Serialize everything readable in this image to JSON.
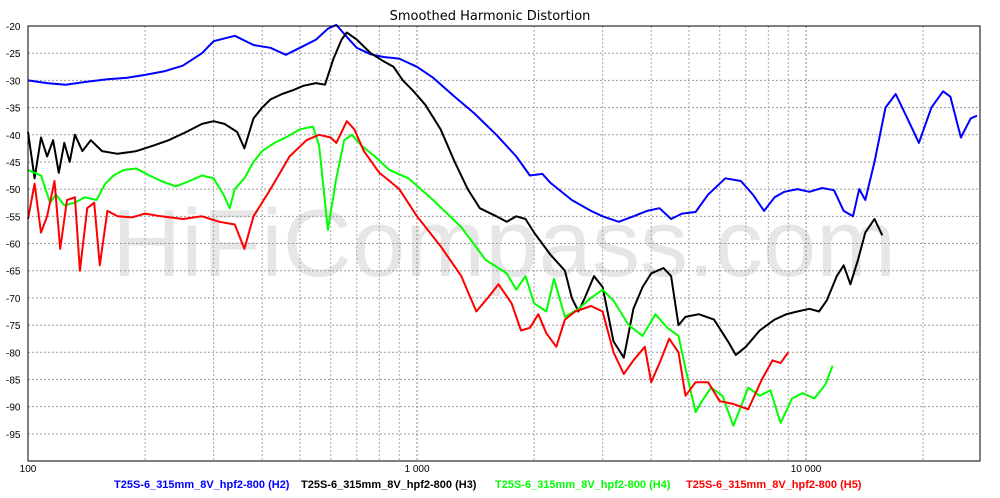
{
  "chart_data": {
    "type": "line",
    "title": "Smoothed Harmonic Distortion",
    "watermark": "HiFiCompass.com",
    "x_scale": "log",
    "xlim": [
      100,
      28000
    ],
    "ylim": [
      -100,
      -20
    ],
    "x_tick_labels": [
      {
        "value": 100,
        "label": "100"
      },
      {
        "value": 1000,
        "label": "1 000"
      },
      {
        "value": 10000,
        "label": "10 000"
      }
    ],
    "y_ticks": [
      -20,
      -25,
      -30,
      -35,
      -40,
      -45,
      -50,
      -55,
      -60,
      -65,
      -70,
      -75,
      -80,
      -85,
      -90,
      -95
    ],
    "y_tick_labels": [
      "-20",
      "-25",
      "-30",
      "-35",
      "-40",
      "-45",
      "-50",
      "-55",
      "-60",
      "-65",
      "-70",
      "-75",
      "-80",
      "-85",
      "-90",
      "-95"
    ],
    "grid": true,
    "legend_position": "bottom",
    "series": [
      {
        "name": "T25S-6_315mm_8V_hpf2-800 (H2)",
        "color": "#0000ff",
        "points": [
          [
            100,
            -30
          ],
          [
            112,
            -30.5
          ],
          [
            125,
            -30.8
          ],
          [
            140,
            -30.3
          ],
          [
            160,
            -29.8
          ],
          [
            180,
            -29.5
          ],
          [
            200,
            -29
          ],
          [
            225,
            -28.3
          ],
          [
            250,
            -27.3
          ],
          [
            280,
            -25
          ],
          [
            300,
            -22.8
          ],
          [
            340,
            -21.8
          ],
          [
            380,
            -23.5
          ],
          [
            420,
            -24
          ],
          [
            460,
            -25.3
          ],
          [
            500,
            -24
          ],
          [
            550,
            -22.5
          ],
          [
            590,
            -20.5
          ],
          [
            620,
            -19.8
          ],
          [
            660,
            -22
          ],
          [
            700,
            -24
          ],
          [
            760,
            -25.2
          ],
          [
            820,
            -25.7
          ],
          [
            900,
            -26
          ],
          [
            1000,
            -27.5
          ],
          [
            1100,
            -29.5
          ],
          [
            1250,
            -33
          ],
          [
            1400,
            -36
          ],
          [
            1600,
            -40
          ],
          [
            1800,
            -44
          ],
          [
            1950,
            -47.5
          ],
          [
            2100,
            -47.2
          ],
          [
            2200,
            -48.8
          ],
          [
            2500,
            -52
          ],
          [
            2800,
            -54
          ],
          [
            3000,
            -55
          ],
          [
            3300,
            -56
          ],
          [
            3600,
            -55
          ],
          [
            3900,
            -54
          ],
          [
            4200,
            -53.5
          ],
          [
            4500,
            -55.5
          ],
          [
            4800,
            -54.5
          ],
          [
            5200,
            -54.2
          ],
          [
            5600,
            -51
          ],
          [
            6200,
            -48
          ],
          [
            6800,
            -48.5
          ],
          [
            7300,
            -51
          ],
          [
            7800,
            -54
          ],
          [
            8300,
            -51.5
          ],
          [
            8800,
            -50.5
          ],
          [
            9500,
            -50
          ],
          [
            10200,
            -50.5
          ],
          [
            11000,
            -49.8
          ],
          [
            11800,
            -50.2
          ],
          [
            12500,
            -54
          ],
          [
            13200,
            -55
          ],
          [
            13700,
            -50
          ],
          [
            14200,
            -52
          ],
          [
            15000,
            -45
          ],
          [
            16000,
            -35
          ],
          [
            17000,
            -32.5
          ],
          [
            18500,
            -38
          ],
          [
            19500,
            -41.5
          ],
          [
            21000,
            -35
          ],
          [
            22500,
            -32
          ],
          [
            23500,
            -33
          ],
          [
            25000,
            -40.5
          ],
          [
            26500,
            -37
          ],
          [
            27500,
            -36.5
          ]
        ]
      },
      {
        "name": "T25S-6_315mm_8V_hpf2-800 (H3)",
        "color": "#000000",
        "points": [
          [
            100,
            -39.5
          ],
          [
            104,
            -48
          ],
          [
            108,
            -40.5
          ],
          [
            112,
            -44
          ],
          [
            116,
            -41
          ],
          [
            120,
            -47
          ],
          [
            124,
            -41.5
          ],
          [
            128,
            -45
          ],
          [
            132,
            -40
          ],
          [
            138,
            -43
          ],
          [
            145,
            -41
          ],
          [
            155,
            -43
          ],
          [
            170,
            -43.5
          ],
          [
            190,
            -43
          ],
          [
            210,
            -42
          ],
          [
            230,
            -41
          ],
          [
            255,
            -39.5
          ],
          [
            280,
            -38
          ],
          [
            300,
            -37.5
          ],
          [
            320,
            -38
          ],
          [
            345,
            -39.5
          ],
          [
            360,
            -42.5
          ],
          [
            380,
            -37
          ],
          [
            400,
            -35
          ],
          [
            420,
            -33.5
          ],
          [
            450,
            -32.5
          ],
          [
            480,
            -31.8
          ],
          [
            510,
            -31
          ],
          [
            550,
            -30.5
          ],
          [
            580,
            -30.8
          ],
          [
            610,
            -26
          ],
          [
            640,
            -22.5
          ],
          [
            660,
            -21.2
          ],
          [
            700,
            -22.5
          ],
          [
            760,
            -25
          ],
          [
            820,
            -26.5
          ],
          [
            870,
            -27.5
          ],
          [
            920,
            -30
          ],
          [
            980,
            -32
          ],
          [
            1050,
            -34.5
          ],
          [
            1150,
            -39
          ],
          [
            1250,
            -45
          ],
          [
            1350,
            -50
          ],
          [
            1450,
            -53.5
          ],
          [
            1600,
            -55
          ],
          [
            1700,
            -56
          ],
          [
            1800,
            -55
          ],
          [
            1900,
            -55.5
          ],
          [
            2000,
            -58
          ],
          [
            2200,
            -62
          ],
          [
            2400,
            -65
          ],
          [
            2500,
            -70
          ],
          [
            2600,
            -72.5
          ],
          [
            2700,
            -70
          ],
          [
            2850,
            -66
          ],
          [
            3000,
            -68
          ],
          [
            3200,
            -78
          ],
          [
            3400,
            -81
          ],
          [
            3600,
            -72
          ],
          [
            3800,
            -68
          ],
          [
            4000,
            -65.5
          ],
          [
            4300,
            -64.5
          ],
          [
            4500,
            -66
          ],
          [
            4700,
            -75
          ],
          [
            4900,
            -73.5
          ],
          [
            5300,
            -73
          ],
          [
            5800,
            -74
          ],
          [
            6300,
            -78
          ],
          [
            6600,
            -80.5
          ],
          [
            7000,
            -79
          ],
          [
            7600,
            -76
          ],
          [
            8300,
            -74
          ],
          [
            8900,
            -73
          ],
          [
            9500,
            -72.5
          ],
          [
            10200,
            -72
          ],
          [
            10800,
            -72.5
          ],
          [
            11300,
            -70.5
          ],
          [
            12000,
            -66
          ],
          [
            12500,
            -64
          ],
          [
            13000,
            -67.5
          ],
          [
            13600,
            -63
          ],
          [
            14200,
            -58
          ],
          [
            15000,
            -55.5
          ],
          [
            15700,
            -58.5
          ]
        ]
      },
      {
        "name": "T25S-6_315mm_8V_hpf2-800 (H4)",
        "color": "#00ff00",
        "points": [
          [
            100,
            -46.5
          ],
          [
            108,
            -47.5
          ],
          [
            114,
            -52.5
          ],
          [
            118,
            -51
          ],
          [
            124,
            -53
          ],
          [
            132,
            -52.5
          ],
          [
            140,
            -51.5
          ],
          [
            150,
            -52
          ],
          [
            158,
            -49
          ],
          [
            166,
            -47.5
          ],
          [
            176,
            -46.5
          ],
          [
            190,
            -46.2
          ],
          [
            205,
            -47.5
          ],
          [
            220,
            -48.5
          ],
          [
            240,
            -49.5
          ],
          [
            260,
            -48.5
          ],
          [
            280,
            -47.5
          ],
          [
            300,
            -48
          ],
          [
            318,
            -51
          ],
          [
            330,
            -53.5
          ],
          [
            340,
            -50
          ],
          [
            360,
            -48
          ],
          [
            380,
            -45
          ],
          [
            400,
            -43
          ],
          [
            430,
            -41.5
          ],
          [
            460,
            -40.5
          ],
          [
            500,
            -39
          ],
          [
            540,
            -38.5
          ],
          [
            560,
            -42
          ],
          [
            590,
            -57.5
          ],
          [
            620,
            -48
          ],
          [
            650,
            -41
          ],
          [
            680,
            -40
          ],
          [
            720,
            -42
          ],
          [
            780,
            -44
          ],
          [
            850,
            -46.5
          ],
          [
            950,
            -48
          ],
          [
            1100,
            -52
          ],
          [
            1300,
            -57
          ],
          [
            1500,
            -63
          ],
          [
            1700,
            -65.5
          ],
          [
            1800,
            -68.5
          ],
          [
            1900,
            -66
          ],
          [
            2000,
            -71
          ],
          [
            2150,
            -72.5
          ],
          [
            2250,
            -66.5
          ],
          [
            2400,
            -73.5
          ],
          [
            2600,
            -72
          ],
          [
            2800,
            -70
          ],
          [
            3000,
            -68.5
          ],
          [
            3200,
            -70.5
          ],
          [
            3500,
            -75
          ],
          [
            3800,
            -77
          ],
          [
            4100,
            -73
          ],
          [
            4400,
            -75.5
          ],
          [
            4700,
            -77
          ],
          [
            4900,
            -83
          ],
          [
            5200,
            -91
          ],
          [
            5400,
            -89
          ],
          [
            5700,
            -86.5
          ],
          [
            6100,
            -88
          ],
          [
            6500,
            -93.5
          ],
          [
            6800,
            -90
          ],
          [
            7100,
            -86.5
          ],
          [
            7600,
            -88
          ],
          [
            8100,
            -87
          ],
          [
            8600,
            -93
          ],
          [
            9200,
            -88.5
          ],
          [
            9800,
            -87.5
          ],
          [
            10500,
            -88.5
          ],
          [
            11200,
            -86
          ],
          [
            11700,
            -82.5
          ]
        ]
      },
      {
        "name": "T25S-6_315mm_8V_hpf2-800 (H5)",
        "color": "#ff0000",
        "points": [
          [
            100,
            -55.5
          ],
          [
            104,
            -49
          ],
          [
            108,
            -58
          ],
          [
            112,
            -55
          ],
          [
            117,
            -48.5
          ],
          [
            121,
            -61
          ],
          [
            126,
            -52
          ],
          [
            132,
            -51.5
          ],
          [
            136,
            -65
          ],
          [
            142,
            -53.5
          ],
          [
            148,
            -52.5
          ],
          [
            153,
            -64
          ],
          [
            160,
            -54
          ],
          [
            170,
            -55
          ],
          [
            185,
            -55.2
          ],
          [
            200,
            -54.5
          ],
          [
            220,
            -55
          ],
          [
            250,
            -55.5
          ],
          [
            280,
            -55
          ],
          [
            310,
            -56
          ],
          [
            340,
            -56.5
          ],
          [
            360,
            -61
          ],
          [
            380,
            -55
          ],
          [
            420,
            -50
          ],
          [
            470,
            -44
          ],
          [
            520,
            -41
          ],
          [
            560,
            -40
          ],
          [
            600,
            -40.5
          ],
          [
            620,
            -41.5
          ],
          [
            660,
            -37.5
          ],
          [
            690,
            -39
          ],
          [
            730,
            -43
          ],
          [
            800,
            -47
          ],
          [
            850,
            -48.5
          ],
          [
            900,
            -50
          ],
          [
            1000,
            -55
          ],
          [
            1150,
            -60.5
          ],
          [
            1300,
            -66
          ],
          [
            1420,
            -72.5
          ],
          [
            1520,
            -70
          ],
          [
            1620,
            -67.5
          ],
          [
            1750,
            -71
          ],
          [
            1850,
            -76
          ],
          [
            1950,
            -75.5
          ],
          [
            2050,
            -73
          ],
          [
            2150,
            -76.5
          ],
          [
            2280,
            -79
          ],
          [
            2400,
            -74
          ],
          [
            2550,
            -72.5
          ],
          [
            2800,
            -71.5
          ],
          [
            3000,
            -72.5
          ],
          [
            3200,
            -80
          ],
          [
            3400,
            -84
          ],
          [
            3600,
            -81.5
          ],
          [
            3850,
            -79
          ],
          [
            4000,
            -85.5
          ],
          [
            4200,
            -82
          ],
          [
            4450,
            -77.5
          ],
          [
            4700,
            -80
          ],
          [
            4900,
            -88
          ],
          [
            5200,
            -85.5
          ],
          [
            5600,
            -85.5
          ],
          [
            6000,
            -89
          ],
          [
            6500,
            -89.5
          ],
          [
            7100,
            -90.5
          ],
          [
            7700,
            -85
          ],
          [
            8200,
            -81.5
          ],
          [
            8600,
            -82
          ],
          [
            9000,
            -80
          ]
        ]
      }
    ]
  }
}
